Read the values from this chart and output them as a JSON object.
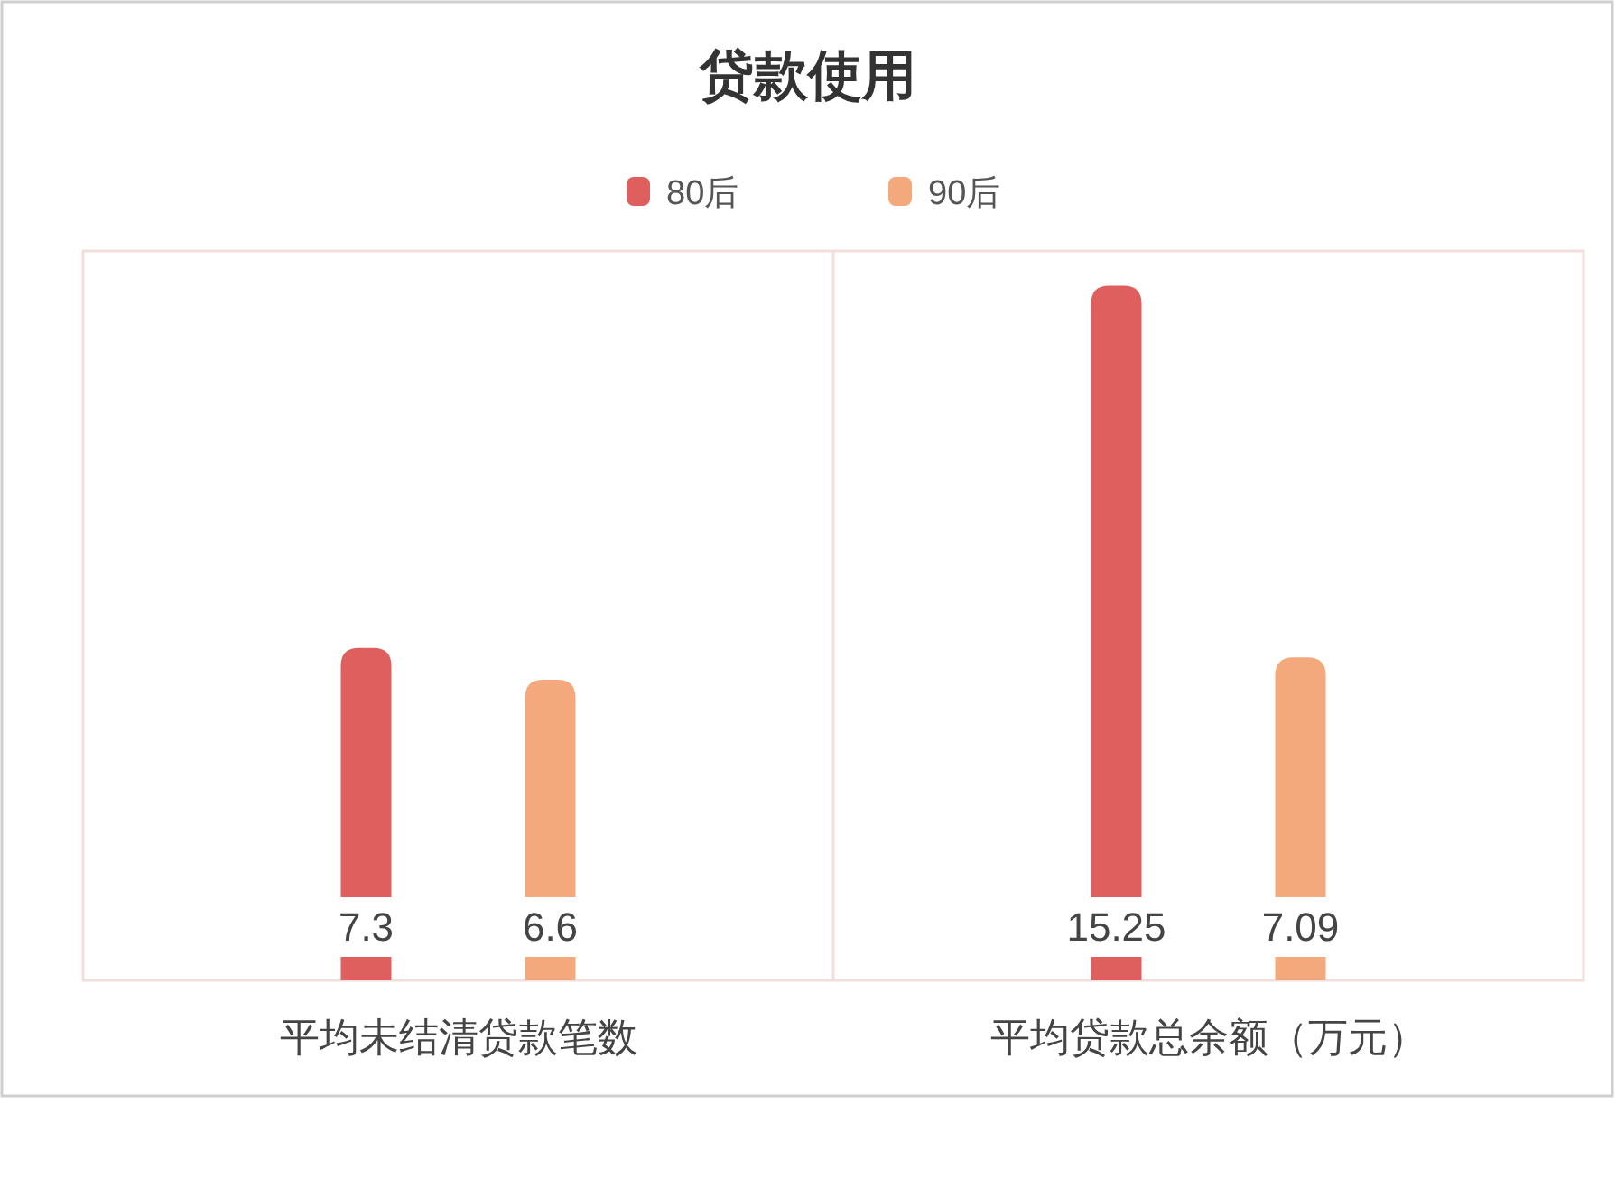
{
  "chart_data": {
    "type": "bar",
    "title": "贷款使用",
    "categories": [
      "平均未结清贷款笔数",
      "平均贷款总余额（万元）"
    ],
    "series": [
      {
        "name": "80后",
        "color": "#df5f5f",
        "values": [
          7.3,
          15.25
        ]
      },
      {
        "name": "90后",
        "color": "#f4a97d",
        "values": [
          6.6,
          7.09
        ]
      }
    ],
    "data_labels": true,
    "legend": "top"
  }
}
